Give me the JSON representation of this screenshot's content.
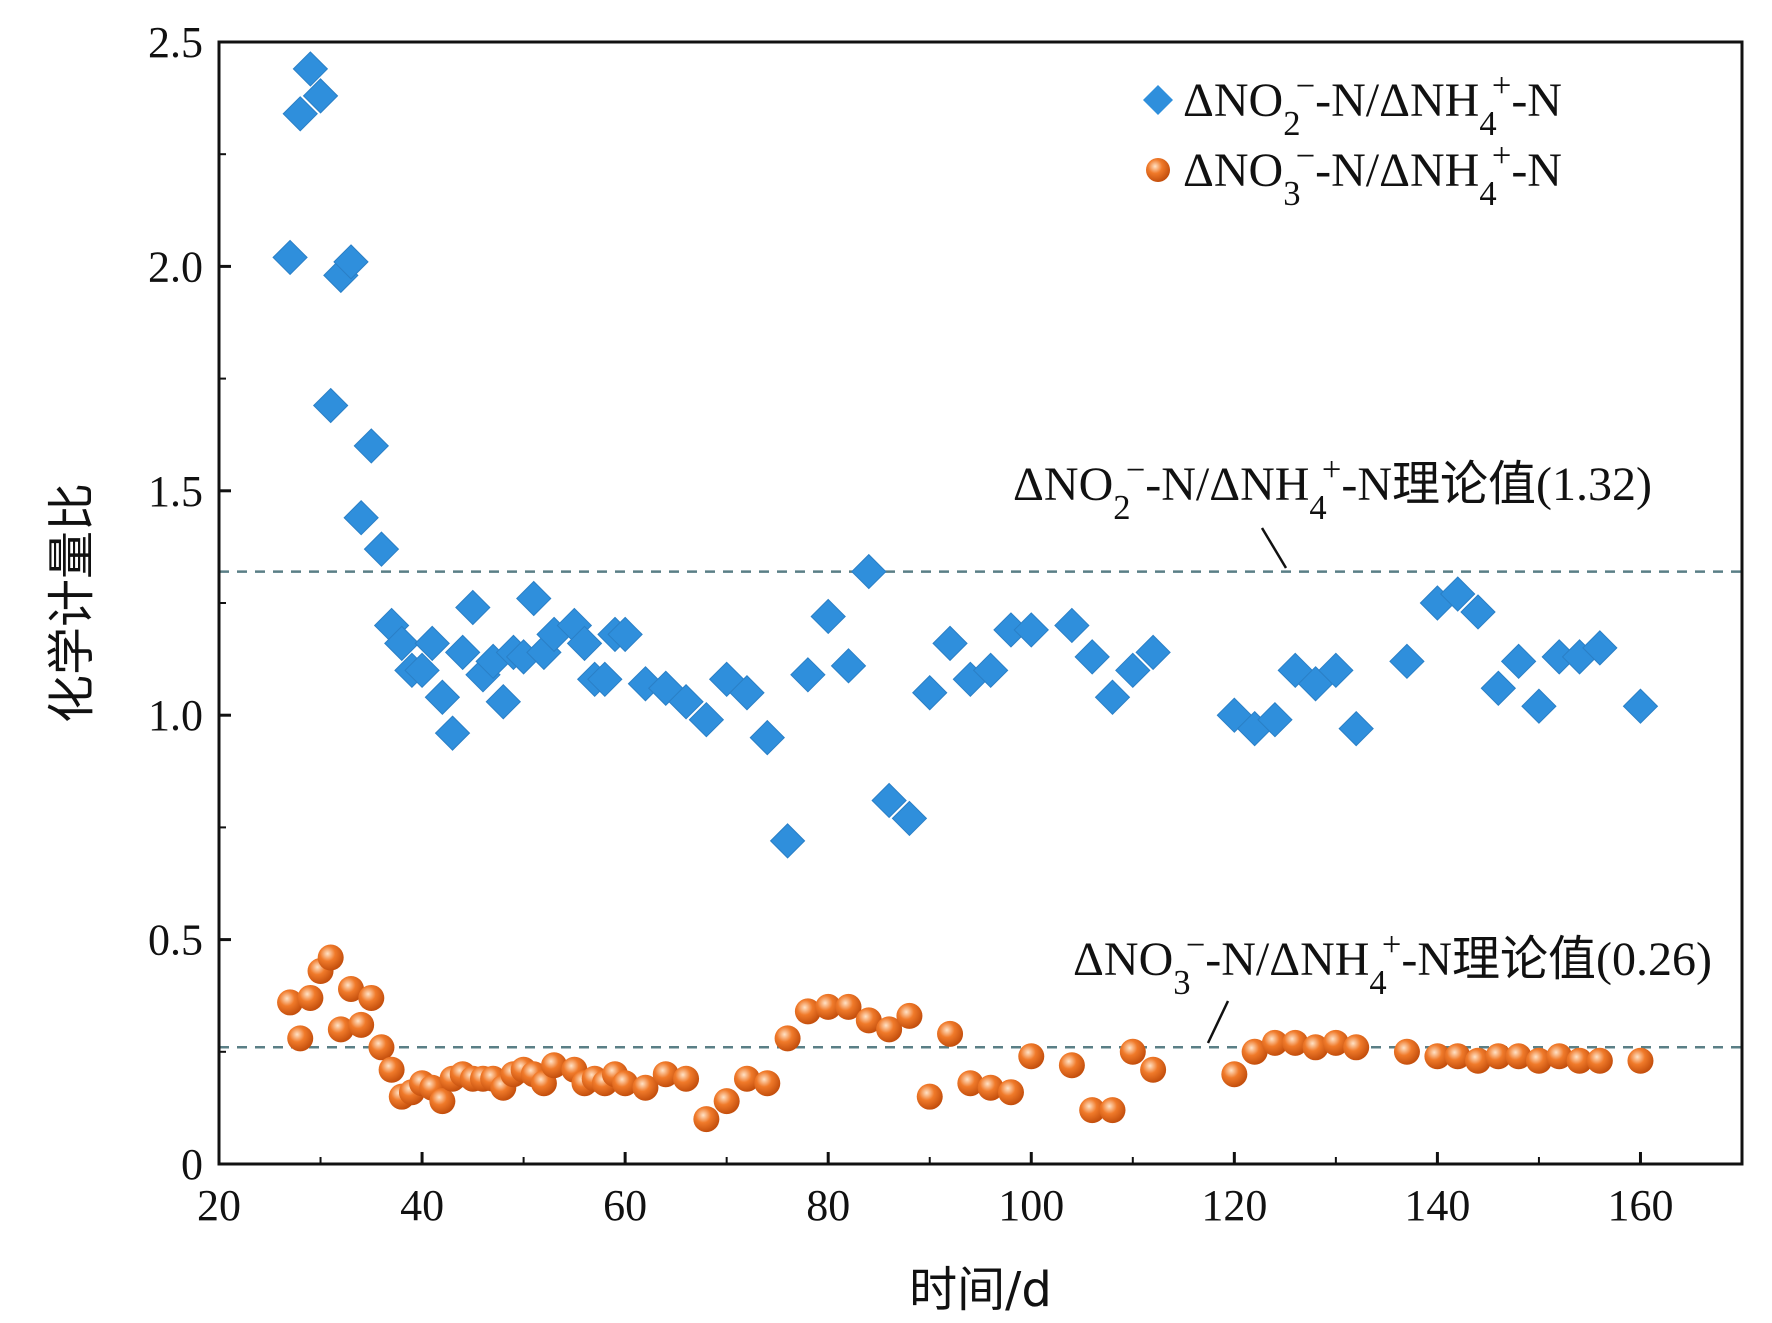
{
  "chart_data": {
    "type": "scatter",
    "xlabel": "时间/d",
    "ylabel": "化学计量比",
    "xlim": [
      20,
      170
    ],
    "ylim": [
      0,
      2.5
    ],
    "x_ticks": [
      "20",
      "40",
      "60",
      "80",
      "100",
      "120",
      "140",
      "160"
    ],
    "y_ticks": [
      "0",
      "0.5",
      "1.0",
      "1.5",
      "2.0",
      "2.5"
    ],
    "legend_position": "top-right",
    "series": [
      {
        "name": "ΔNO2−-N/ΔNH4+-N",
        "marker": "diamond",
        "color": "#2f8fdc",
        "points": [
          [
            27,
            2.02
          ],
          [
            28,
            2.34
          ],
          [
            29,
            2.44
          ],
          [
            30,
            2.38
          ],
          [
            31,
            1.69
          ],
          [
            32,
            1.98
          ],
          [
            33,
            2.01
          ],
          [
            34,
            1.44
          ],
          [
            35,
            1.6
          ],
          [
            36,
            1.37
          ],
          [
            37,
            1.2
          ],
          [
            38,
            1.16
          ],
          [
            39,
            1.1
          ],
          [
            40,
            1.1
          ],
          [
            41,
            1.16
          ],
          [
            42,
            1.04
          ],
          [
            43,
            0.96
          ],
          [
            44,
            1.14
          ],
          [
            45,
            1.24
          ],
          [
            46,
            1.09
          ],
          [
            47,
            1.12
          ],
          [
            48,
            1.03
          ],
          [
            49,
            1.14
          ],
          [
            50,
            1.13
          ],
          [
            51,
            1.26
          ],
          [
            52,
            1.14
          ],
          [
            53,
            1.18
          ],
          [
            55,
            1.2
          ],
          [
            56,
            1.16
          ],
          [
            57,
            1.08
          ],
          [
            58,
            1.08
          ],
          [
            59,
            1.18
          ],
          [
            60,
            1.18
          ],
          [
            62,
            1.07
          ],
          [
            64,
            1.06
          ],
          [
            66,
            1.03
          ],
          [
            68,
            0.99
          ],
          [
            70,
            1.08
          ],
          [
            72,
            1.05
          ],
          [
            74,
            0.95
          ],
          [
            76,
            0.72
          ],
          [
            78,
            1.09
          ],
          [
            80,
            1.22
          ],
          [
            82,
            1.11
          ],
          [
            84,
            1.32
          ],
          [
            86,
            0.81
          ],
          [
            88,
            0.77
          ],
          [
            90,
            1.05
          ],
          [
            92,
            1.16
          ],
          [
            94,
            1.08
          ],
          [
            96,
            1.1
          ],
          [
            98,
            1.19
          ],
          [
            100,
            1.19
          ],
          [
            104,
            1.2
          ],
          [
            106,
            1.13
          ],
          [
            108,
            1.04
          ],
          [
            110,
            1.1
          ],
          [
            112,
            1.14
          ],
          [
            120,
            1.0
          ],
          [
            122,
            0.97
          ],
          [
            124,
            0.99
          ],
          [
            126,
            1.1
          ],
          [
            128,
            1.07
          ],
          [
            130,
            1.1
          ],
          [
            132,
            0.97
          ],
          [
            137,
            1.12
          ],
          [
            140,
            1.25
          ],
          [
            142,
            1.27
          ],
          [
            144,
            1.23
          ],
          [
            146,
            1.06
          ],
          [
            148,
            1.12
          ],
          [
            150,
            1.02
          ],
          [
            152,
            1.13
          ],
          [
            154,
            1.13
          ],
          [
            156,
            1.15
          ],
          [
            160,
            1.02
          ]
        ]
      },
      {
        "name": "ΔNO3−-N/ΔNH4+-N",
        "marker": "circle",
        "color": "#f07a2a",
        "points": [
          [
            27,
            0.36
          ],
          [
            28,
            0.28
          ],
          [
            29,
            0.37
          ],
          [
            30,
            0.43
          ],
          [
            31,
            0.46
          ],
          [
            32,
            0.3
          ],
          [
            33,
            0.39
          ],
          [
            34,
            0.31
          ],
          [
            35,
            0.37
          ],
          [
            36,
            0.26
          ],
          [
            37,
            0.21
          ],
          [
            38,
            0.15
          ],
          [
            39,
            0.16
          ],
          [
            40,
            0.18
          ],
          [
            41,
            0.17
          ],
          [
            42,
            0.14
          ],
          [
            43,
            0.19
          ],
          [
            44,
            0.2
          ],
          [
            45,
            0.19
          ],
          [
            46,
            0.19
          ],
          [
            47,
            0.19
          ],
          [
            48,
            0.17
          ],
          [
            49,
            0.2
          ],
          [
            50,
            0.21
          ],
          [
            51,
            0.2
          ],
          [
            52,
            0.18
          ],
          [
            53,
            0.22
          ],
          [
            55,
            0.21
          ],
          [
            56,
            0.18
          ],
          [
            57,
            0.19
          ],
          [
            58,
            0.18
          ],
          [
            59,
            0.2
          ],
          [
            60,
            0.18
          ],
          [
            62,
            0.17
          ],
          [
            64,
            0.2
          ],
          [
            66,
            0.19
          ],
          [
            68,
            0.1
          ],
          [
            70,
            0.14
          ],
          [
            72,
            0.19
          ],
          [
            74,
            0.18
          ],
          [
            76,
            0.28
          ],
          [
            78,
            0.34
          ],
          [
            80,
            0.35
          ],
          [
            82,
            0.35
          ],
          [
            84,
            0.32
          ],
          [
            86,
            0.3
          ],
          [
            88,
            0.33
          ],
          [
            90,
            0.15
          ],
          [
            92,
            0.29
          ],
          [
            94,
            0.18
          ],
          [
            96,
            0.17
          ],
          [
            98,
            0.16
          ],
          [
            100,
            0.24
          ],
          [
            104,
            0.22
          ],
          [
            106,
            0.12
          ],
          [
            108,
            0.12
          ],
          [
            110,
            0.25
          ],
          [
            112,
            0.21
          ],
          [
            120,
            0.2
          ],
          [
            122,
            0.25
          ],
          [
            124,
            0.27
          ],
          [
            126,
            0.27
          ],
          [
            128,
            0.26
          ],
          [
            130,
            0.27
          ],
          [
            132,
            0.26
          ],
          [
            137,
            0.25
          ],
          [
            140,
            0.24
          ],
          [
            142,
            0.24
          ],
          [
            144,
            0.23
          ],
          [
            146,
            0.24
          ],
          [
            148,
            0.24
          ],
          [
            150,
            0.23
          ],
          [
            152,
            0.24
          ],
          [
            154,
            0.23
          ],
          [
            156,
            0.23
          ],
          [
            160,
            0.23
          ]
        ]
      }
    ],
    "reference_lines": [
      {
        "value": 1.32,
        "label": "ΔNO2−-N/ΔNH4+-N理论值(1.32)"
      },
      {
        "value": 0.26,
        "label": "ΔNO3−-N/ΔNH4+-N理论值(0.26)"
      }
    ]
  }
}
